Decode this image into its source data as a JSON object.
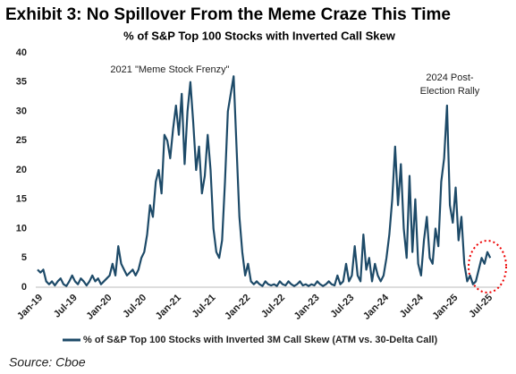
{
  "chart_data": {
    "type": "line",
    "title": "Exhibit 3: No Spillover From the Meme Craze This Time",
    "subtitle": "% of S&P Top 100 Stocks with Inverted Call Skew",
    "annotations": [
      "2021 \"Meme Stock Frenzy\"",
      "2024 Post-",
      "Election Rally"
    ],
    "source": "Source: Cboe",
    "categories": [
      "Jan-19",
      null,
      null,
      null,
      null,
      null,
      null,
      null,
      null,
      null,
      null,
      null,
      "Jul-19",
      null,
      null,
      null,
      null,
      null,
      null,
      null,
      null,
      null,
      null,
      null,
      "Jan-20",
      null,
      null,
      null,
      null,
      null,
      null,
      null,
      null,
      null,
      null,
      null,
      "Jul-20",
      null,
      null,
      null,
      null,
      null,
      null,
      null,
      null,
      null,
      null,
      null,
      "Jan-21",
      null,
      null,
      null,
      null,
      null,
      null,
      null,
      null,
      null,
      null,
      null,
      "Jul-21",
      null,
      null,
      null,
      null,
      null,
      null,
      null,
      null,
      null,
      null,
      null,
      "Jan-22",
      null,
      null,
      null,
      null,
      null,
      null,
      null,
      null,
      null,
      null,
      null,
      "Jul-22",
      null,
      null,
      null,
      null,
      null,
      null,
      null,
      null,
      null,
      null,
      null,
      "Jan-23",
      null,
      null,
      null,
      null,
      null,
      null,
      null,
      null,
      null,
      null,
      null,
      "Jul-23",
      null,
      null,
      null,
      null,
      null,
      null,
      null,
      null,
      null,
      null,
      null,
      "Jan-24",
      null,
      null,
      null,
      null,
      null,
      null,
      null,
      null,
      null,
      null,
      null,
      "Jul-24",
      null,
      null,
      null,
      null,
      null,
      null,
      null,
      null,
      null,
      null,
      null,
      "Jan-25",
      null,
      null,
      null,
      null,
      null,
      null,
      null,
      null,
      null,
      null,
      null,
      "Jul-25",
      null
    ],
    "series": [
      {
        "name": "% of S&P Top 100 Stocks with Inverted 3M Call Skew (ATM vs. 30-Delta Call)",
        "color": "#1d4a68",
        "values": [
          3,
          2.5,
          3,
          1,
          0.5,
          1,
          0.3,
          1,
          1.5,
          0.5,
          0.2,
          1,
          2,
          1,
          0.5,
          1.5,
          1,
          0.3,
          1,
          2,
          1,
          1.5,
          0.5,
          1,
          1.5,
          2,
          4,
          2,
          7,
          4,
          3,
          2,
          2.5,
          3,
          2,
          3,
          5,
          6,
          9,
          14,
          12,
          18,
          20,
          16,
          26,
          25,
          22,
          27,
          31,
          26,
          33,
          21,
          30,
          35,
          28,
          20,
          24,
          16,
          19,
          26,
          20,
          10,
          6,
          5,
          8,
          18,
          30,
          33,
          36,
          24,
          12,
          6,
          2,
          4,
          1,
          0.5,
          1,
          0.5,
          0.2,
          1,
          0.5,
          0.3,
          0.5,
          0.2,
          1,
          0.5,
          0.3,
          1,
          0.5,
          0.2,
          0.5,
          1,
          0.3,
          0.5,
          0.2,
          0.5,
          0.3,
          1,
          0.5,
          0.2,
          0.5,
          1,
          0.5,
          0.3,
          2,
          0.5,
          1,
          4,
          1,
          2,
          7,
          2,
          1,
          9,
          3,
          5,
          1,
          4,
          2,
          1,
          2,
          5,
          9,
          15,
          24,
          14,
          21,
          10,
          5,
          19,
          6,
          15,
          4,
          2,
          8,
          12,
          5,
          4,
          10,
          7,
          18,
          22,
          31,
          14,
          11,
          17,
          8,
          12,
          4,
          1,
          2,
          0.5,
          1,
          3,
          5,
          4,
          6,
          5
        ]
      }
    ],
    "ylim": [
      0,
      40
    ],
    "yticks": [
      0,
      5,
      10,
      15,
      20,
      25,
      30,
      35,
      40
    ],
    "grid": false
  }
}
